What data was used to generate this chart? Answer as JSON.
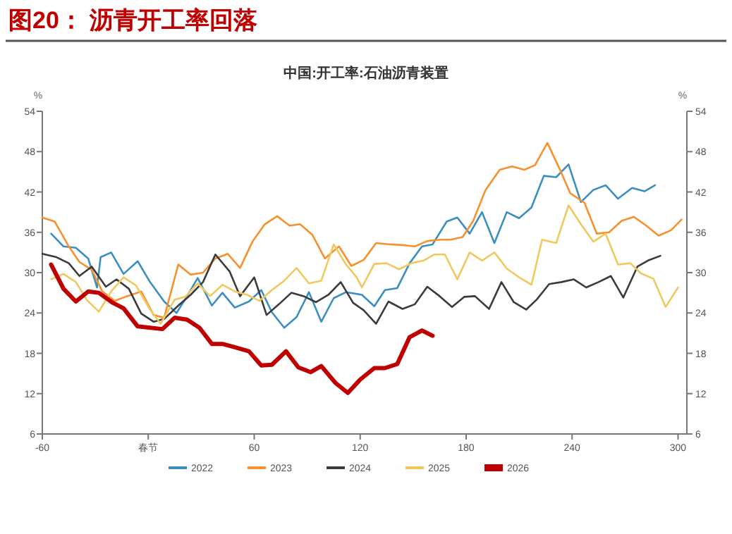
{
  "chart_data": {
    "type": "line",
    "title": "图20： 沥青开工率回落",
    "subtitle": "中国:开工率:石油沥青装置",
    "ylabel": "%",
    "y2label": "%",
    "xlim": [
      -60,
      305
    ],
    "xticks": [
      -60,
      {
        "value": 0,
        "label": "春节"
      },
      60,
      120,
      180,
      240,
      300
    ],
    "ylim": [
      6,
      54
    ],
    "yticks": [
      6,
      12,
      18,
      24,
      30,
      36,
      42,
      48,
      54
    ],
    "y2lim": [
      6,
      54
    ],
    "y2ticks": [
      6,
      12,
      18,
      24,
      30,
      36,
      42,
      48,
      54
    ],
    "grid": false,
    "legend": "bottom",
    "line_style": "solid",
    "series": [
      {
        "name": "2022",
        "color": "#3a8fc0",
        "x": [
          -55,
          -48,
          -41,
          -34,
          -29,
          -27,
          -21,
          -14,
          -6,
          1,
          9,
          16,
          22,
          28,
          36,
          42,
          49,
          57,
          64,
          70,
          77,
          84,
          91,
          98,
          105,
          112,
          121,
          128,
          134,
          141,
          148,
          155,
          161,
          169,
          175,
          182,
          189,
          196,
          203,
          210,
          217,
          224,
          231,
          238,
          245,
          252,
          259,
          266,
          274,
          281,
          287
        ],
        "values": [
          35.8,
          33.9,
          33.7,
          32.1,
          27.8,
          32.3,
          33,
          29.8,
          31.7,
          28.6,
          25.7,
          24,
          26.5,
          29.2,
          25.1,
          27,
          24.8,
          25.7,
          27.4,
          24.1,
          21.8,
          23.4,
          27.1,
          22.7,
          26.2,
          27.1,
          26.7,
          25,
          27.4,
          27.7,
          31.4,
          33.9,
          34.2,
          37.6,
          38.2,
          35.8,
          39,
          34.4,
          39,
          38.1,
          39.7,
          44.4,
          44.2,
          46.1,
          40.5,
          42.3,
          43,
          41,
          42.6,
          42.1,
          43
        ]
      },
      {
        "name": "2023",
        "color": "#f7902e",
        "x": [
          -60,
          -53,
          -45,
          -39,
          -32,
          -26,
          -19,
          -12,
          -4,
          3,
          9,
          17,
          24,
          31,
          38,
          45,
          52,
          59,
          66,
          73,
          80,
          86,
          93,
          100,
          108,
          115,
          122,
          129,
          137,
          144,
          151,
          158,
          165,
          171,
          178,
          184,
          191,
          199,
          206,
          213,
          219,
          226,
          233,
          239,
          247,
          254,
          261,
          268,
          275,
          282,
          289,
          296,
          302
        ],
        "values": [
          38.2,
          37.6,
          33.9,
          31.6,
          30.4,
          27.2,
          25.8,
          26.5,
          27.2,
          23.7,
          23.3,
          31.2,
          29.7,
          30,
          32.1,
          32.8,
          30.7,
          34.6,
          37.2,
          38.4,
          37,
          37.2,
          35.6,
          32.1,
          33.9,
          31,
          31.9,
          34.4,
          34.2,
          34.1,
          33.9,
          34.7,
          34.9,
          34.9,
          35.3,
          37.7,
          42.3,
          45.3,
          45.8,
          45.3,
          46,
          49.3,
          45.4,
          41.8,
          40.4,
          35.8,
          36,
          37.7,
          38.3,
          37,
          35.5,
          36.3,
          37.9
        ]
      },
      {
        "name": "2024",
        "color": "#3b3b3b",
        "x": [
          -60,
          -52,
          -45,
          -39,
          -32,
          -24,
          -18,
          -11,
          -4,
          3,
          9,
          17,
          24,
          31,
          38,
          46,
          52,
          60,
          67,
          74,
          81,
          88,
          95,
          102,
          109,
          116,
          122,
          129,
          136,
          144,
          151,
          158,
          165,
          172,
          179,
          185,
          193,
          200,
          207,
          214,
          220,
          227,
          234,
          241,
          248,
          255,
          262,
          269,
          277,
          283,
          290
        ],
        "values": [
          32.8,
          32.3,
          31.4,
          29.5,
          30.9,
          27.9,
          29,
          27.6,
          23.9,
          22.7,
          23.1,
          25.1,
          26.7,
          28.6,
          32.7,
          30.2,
          26.5,
          29.3,
          23.7,
          25.3,
          27,
          26.5,
          25.6,
          26.7,
          28.6,
          25.5,
          24.4,
          22.4,
          25.7,
          24.6,
          25.3,
          27.9,
          26.5,
          24.9,
          26.4,
          26.5,
          24.6,
          28.6,
          25.6,
          24.5,
          26,
          28.3,
          28.6,
          29,
          27.8,
          28.6,
          29.5,
          26.3,
          30.9,
          31.8,
          32.5
        ]
      },
      {
        "name": "2025",
        "color": "#f0c95e",
        "x": [
          -55,
          -48,
          -41,
          -35,
          -28,
          -21,
          -14,
          -7,
          1,
          7,
          15,
          21,
          28,
          35,
          42,
          49,
          56,
          63,
          70,
          77,
          84,
          91,
          98,
          105,
          112,
          118,
          121,
          128,
          135,
          142,
          149,
          156,
          162,
          168,
          175,
          182,
          189,
          196,
          203,
          210,
          217,
          223,
          231,
          238,
          245,
          252,
          259,
          266,
          273,
          279,
          286,
          293,
          300
        ],
        "values": [
          29,
          29.8,
          28.6,
          26,
          24.2,
          27.2,
          29.3,
          28.1,
          24.5,
          22.4,
          26,
          26.4,
          28.4,
          26.5,
          28.2,
          27.2,
          26.7,
          25.8,
          27.4,
          28.8,
          30.7,
          28.4,
          28.8,
          34.2,
          31.2,
          29.3,
          27.8,
          31.3,
          31.4,
          30.5,
          31.4,
          31.8,
          32.7,
          32.7,
          29,
          33,
          31.8,
          33,
          30.6,
          29.3,
          28.2,
          34.9,
          34.4,
          40,
          37.2,
          34.6,
          35.8,
          31.2,
          31.4,
          29.9,
          29.1,
          24.9,
          27.8
        ]
      },
      {
        "name": "2026",
        "color": "#c00000",
        "x": [
          -55,
          -48,
          -41,
          -34,
          -28,
          -20,
          -14,
          -6,
          8,
          15,
          22,
          29,
          36,
          42,
          49,
          57,
          64,
          70,
          78,
          85,
          92,
          98,
          106,
          113,
          120,
          128,
          134,
          141,
          148,
          155,
          161
        ],
        "values": [
          31.2,
          27.6,
          25.7,
          27.2,
          27,
          25.5,
          24.7,
          22,
          21.6,
          23.3,
          23,
          21.8,
          19.4,
          19.4,
          18.9,
          18.3,
          16.2,
          16.3,
          18.3,
          15.9,
          15.2,
          16.1,
          13.6,
          12.1,
          14.1,
          15.8,
          15.8,
          16.4,
          20.4,
          21.4,
          20.6
        ]
      }
    ]
  }
}
